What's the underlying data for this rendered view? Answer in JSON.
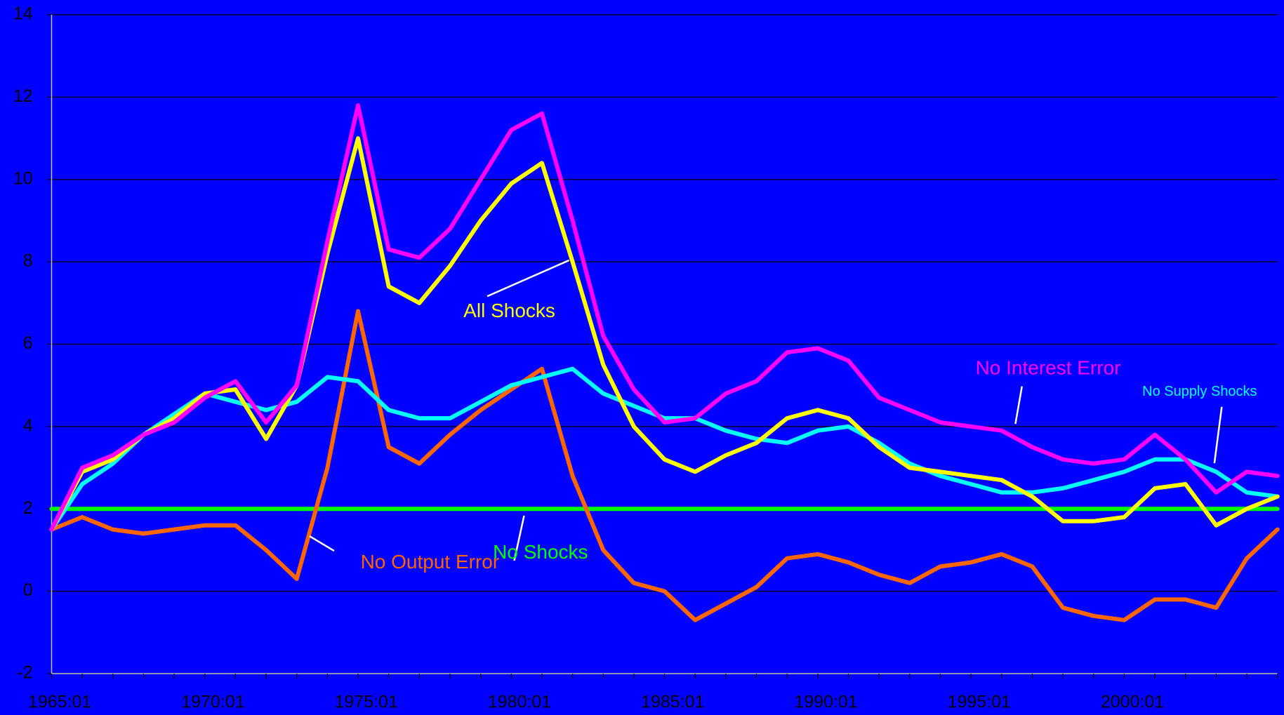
{
  "chart_data": {
    "type": "line",
    "categories": [
      "1965:01",
      null,
      null,
      null,
      null,
      "1970:01",
      null,
      null,
      null,
      null,
      "1975:01",
      null,
      null,
      null,
      null,
      "1980:01",
      null,
      null,
      null,
      null,
      "1985:01",
      null,
      null,
      null,
      null,
      "1990:01",
      null,
      null,
      null,
      null,
      "1995:01",
      null,
      null,
      null,
      null,
      "2000:01",
      null,
      null,
      null,
      null,
      null
    ],
    "ylim": [
      -2,
      14
    ],
    "yticks": [
      -2,
      0,
      2,
      4,
      6,
      8,
      10,
      12,
      14
    ],
    "grid": true,
    "series": [
      {
        "name": "All Shocks",
        "color": "#ffff00",
        "values": [
          1.5,
          2.9,
          3.2,
          3.8,
          4.2,
          4.8,
          4.9,
          3.7,
          5.0,
          8.2,
          11.0,
          7.4,
          7.0,
          7.9,
          9.0,
          9.9,
          10.4,
          8.0,
          5.5,
          4.0,
          3.2,
          2.9,
          3.3,
          3.6,
          4.2,
          4.4,
          4.2,
          3.5,
          3.0,
          2.9,
          2.8,
          2.7,
          2.3,
          1.7,
          1.7,
          1.8,
          2.5,
          2.6,
          1.6,
          2.0,
          2.3
        ]
      },
      {
        "name": "No Interest Error",
        "color": "#ff00ff",
        "values": [
          1.5,
          3.0,
          3.3,
          3.8,
          4.1,
          4.7,
          5.1,
          4.1,
          5.0,
          8.5,
          11.8,
          8.3,
          8.1,
          8.8,
          10.0,
          11.2,
          11.6,
          9.0,
          6.2,
          4.9,
          4.1,
          4.2,
          4.8,
          5.1,
          5.8,
          5.9,
          5.6,
          4.7,
          4.4,
          4.1,
          4.0,
          3.9,
          3.5,
          3.2,
          3.1,
          3.2,
          3.8,
          3.2,
          2.4,
          2.9,
          2.8
        ]
      },
      {
        "name": "No Supply Shocks",
        "color": "#00ffff",
        "values": [
          1.5,
          2.6,
          3.1,
          3.8,
          4.3,
          4.8,
          4.6,
          4.4,
          4.6,
          5.2,
          5.1,
          4.4,
          4.2,
          4.2,
          4.6,
          5.0,
          5.2,
          5.4,
          4.8,
          4.5,
          4.2,
          4.2,
          3.9,
          3.7,
          3.6,
          3.9,
          4.0,
          3.6,
          3.1,
          2.8,
          2.6,
          2.4,
          2.4,
          2.5,
          2.7,
          2.9,
          3.2,
          3.2,
          2.9,
          2.4,
          2.3
        ]
      },
      {
        "name": "No Output Error",
        "color": "#ff6600",
        "values": [
          1.5,
          1.8,
          1.5,
          1.4,
          1.5,
          1.6,
          1.6,
          1.0,
          0.3,
          3.0,
          6.8,
          3.5,
          3.1,
          3.8,
          4.4,
          4.9,
          5.4,
          2.8,
          1.0,
          0.2,
          0.0,
          -0.7,
          -0.3,
          0.1,
          0.8,
          0.9,
          0.7,
          0.4,
          0.2,
          0.6,
          0.7,
          0.9,
          0.6,
          -0.4,
          -0.6,
          -0.7,
          -0.2,
          -0.2,
          -0.4,
          0.8,
          1.5
        ]
      },
      {
        "name": "No Shocks",
        "color": "#00ff00",
        "values": [
          2,
          2,
          2,
          2,
          2,
          2,
          2,
          2,
          2,
          2,
          2,
          2,
          2,
          2,
          2,
          2,
          2,
          2,
          2,
          2,
          2,
          2,
          2,
          2,
          2,
          2,
          2,
          2,
          2,
          2,
          2,
          2,
          2,
          2,
          2,
          2,
          2,
          2,
          2,
          2,
          2
        ]
      }
    ]
  }
}
